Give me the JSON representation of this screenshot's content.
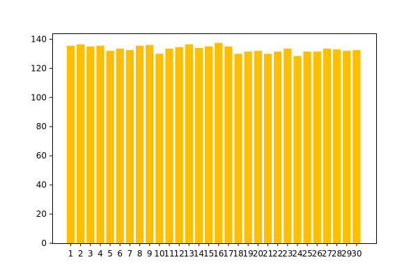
{
  "chart_data": {
    "type": "bar",
    "title": "",
    "xlabel": "",
    "ylabel": "",
    "categories": [
      "1",
      "2",
      "3",
      "4",
      "5",
      "6",
      "7",
      "8",
      "9",
      "10",
      "11",
      "12",
      "13",
      "14",
      "15",
      "16",
      "17",
      "18",
      "19",
      "20",
      "21",
      "22",
      "23",
      "24",
      "25",
      "26",
      "27",
      "28",
      "29",
      "30"
    ],
    "values": [
      135.5,
      136.5,
      135,
      135.5,
      132,
      133.5,
      132.5,
      135.5,
      136,
      130,
      133.5,
      134.5,
      136.5,
      134,
      135,
      137.5,
      135,
      130,
      131.5,
      132,
      130,
      131.5,
      133.5,
      128.5,
      131.5,
      131.5,
      133.5,
      133,
      132,
      132.5
    ],
    "ylim": [
      0,
      144
    ],
    "yticks": [
      0,
      20,
      40,
      60,
      80,
      100,
      120,
      140
    ],
    "bar_color": "#ffbf00",
    "grid": false,
    "legend": "none"
  }
}
